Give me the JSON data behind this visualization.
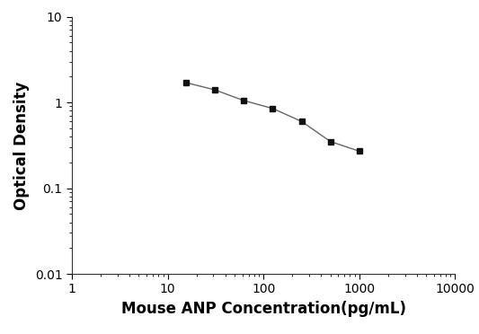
{
  "x": [
    15.6,
    31.2,
    62.5,
    125,
    250,
    500,
    1000
  ],
  "y": [
    1.7,
    1.4,
    1.05,
    0.85,
    0.6,
    0.35,
    0.27
  ],
  "xlabel": "Mouse ANP Concentration(pg/mL)",
  "ylabel": "Optical Density",
  "xlim": [
    1,
    10000
  ],
  "ylim": [
    0.01,
    10
  ],
  "line_color": "#666666",
  "marker": "s",
  "marker_color": "#111111",
  "marker_size": 5,
  "linewidth": 1.0,
  "background_color": "#ffffff",
  "xlabel_fontsize": 12,
  "ylabel_fontsize": 12,
  "tick_fontsize": 10,
  "tick_direction": "out"
}
